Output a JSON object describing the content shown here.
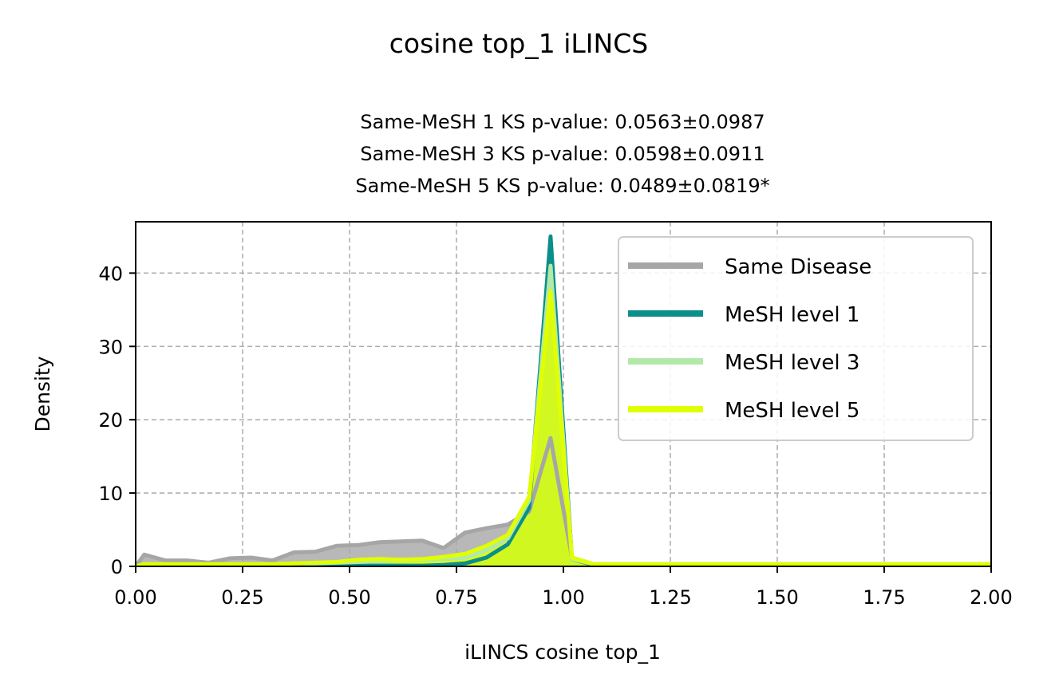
{
  "chart_data": {
    "type": "area",
    "suptitle": "cosine top_1 iLINCS",
    "title_lines": [
      "Same-MeSH 1 KS p-value: 0.0563±0.0987",
      "Same-MeSH 3 KS p-value: 0.0598±0.0911",
      "Same-MeSH 5 KS p-value: 0.0489±0.0819*"
    ],
    "xlabel": "iLINCS cosine top_1",
    "ylabel": "Density",
    "xlim": [
      0,
      2
    ],
    "ylim": [
      0,
      47
    ],
    "xticks": [
      0,
      0.25,
      0.5,
      0.75,
      1.0,
      1.25,
      1.5,
      1.75,
      2.0
    ],
    "xtick_labels": [
      "0.00",
      "0.25",
      "0.50",
      "0.75",
      "1.00",
      "1.25",
      "1.50",
      "1.75",
      "2.00"
    ],
    "yticks": [
      0,
      10,
      20,
      30,
      40
    ],
    "ytick_labels": [
      "0",
      "10",
      "20",
      "30",
      "40"
    ],
    "grid": true,
    "legend_position": "top-right",
    "series": [
      {
        "name": "Same Disease",
        "color": "#a6a6a6",
        "fill_color": "#a6a6a6",
        "line_width": 5,
        "x": [
          0.0,
          0.02,
          0.07,
          0.12,
          0.17,
          0.22,
          0.27,
          0.32,
          0.37,
          0.42,
          0.47,
          0.52,
          0.57,
          0.62,
          0.67,
          0.72,
          0.77,
          0.82,
          0.87,
          0.92,
          0.97,
          1.02,
          1.07,
          1.12,
          1.5,
          2.0
        ],
        "y": [
          0,
          1.6,
          0.8,
          0.8,
          0.5,
          1.1,
          1.2,
          0.8,
          1.9,
          2.0,
          2.8,
          2.9,
          3.3,
          3.4,
          3.5,
          2.5,
          4.6,
          5.2,
          5.7,
          7.5,
          17.5,
          1.2,
          0.3,
          0.3,
          0.3,
          0.3
        ]
      },
      {
        "name": "MeSH level 1",
        "color": "#0b8f8a",
        "fill_color": "#0b8f8a",
        "line_width": 5,
        "x": [
          0.0,
          0.02,
          0.07,
          0.12,
          0.17,
          0.22,
          0.27,
          0.32,
          0.37,
          0.42,
          0.47,
          0.52,
          0.57,
          0.62,
          0.67,
          0.72,
          0.77,
          0.82,
          0.87,
          0.92,
          0.97,
          1.02,
          1.07,
          1.12,
          1.5,
          2.0
        ],
        "y": [
          0,
          0.1,
          0.1,
          0.1,
          0.1,
          0.1,
          0.1,
          0.1,
          0.1,
          0.1,
          0.1,
          0.1,
          0.1,
          0.1,
          0.1,
          0.2,
          0.4,
          1.2,
          3.0,
          8.0,
          45.0,
          1.0,
          0.2,
          0.2,
          0.2,
          0.2
        ]
      },
      {
        "name": "MeSH level 3",
        "color": "#b2e8a8",
        "fill_color": "#b2e8a8",
        "line_width": 5,
        "x": [
          0.0,
          0.02,
          0.07,
          0.12,
          0.17,
          0.22,
          0.27,
          0.32,
          0.37,
          0.42,
          0.47,
          0.52,
          0.57,
          0.62,
          0.67,
          0.72,
          0.77,
          0.82,
          0.87,
          0.92,
          0.97,
          1.02,
          1.07,
          1.12,
          1.5,
          2.0
        ],
        "y": [
          0,
          0.3,
          0.3,
          0.3,
          0.3,
          0.3,
          0.3,
          0.3,
          0.4,
          0.4,
          0.5,
          0.6,
          0.7,
          0.8,
          0.9,
          1.0,
          1.2,
          2.2,
          3.8,
          9.0,
          41.0,
          1.0,
          0.3,
          0.3,
          0.3,
          0.3
        ]
      },
      {
        "name": "MeSH level 5",
        "color": "#e0ff00",
        "fill_color": "#e0ff00",
        "line_width": 5,
        "x": [
          0.0,
          0.02,
          0.07,
          0.12,
          0.17,
          0.22,
          0.27,
          0.32,
          0.37,
          0.42,
          0.47,
          0.52,
          0.57,
          0.62,
          0.67,
          0.72,
          0.77,
          0.82,
          0.87,
          0.92,
          0.97,
          1.02,
          1.07,
          1.12,
          1.5,
          2.0
        ],
        "y": [
          0,
          0.3,
          0.3,
          0.3,
          0.3,
          0.3,
          0.3,
          0.3,
          0.4,
          0.5,
          0.6,
          0.9,
          1.0,
          0.9,
          1.0,
          1.3,
          1.7,
          2.8,
          4.3,
          9.5,
          37.5,
          1.2,
          0.3,
          0.3,
          0.3,
          0.3
        ]
      }
    ]
  }
}
